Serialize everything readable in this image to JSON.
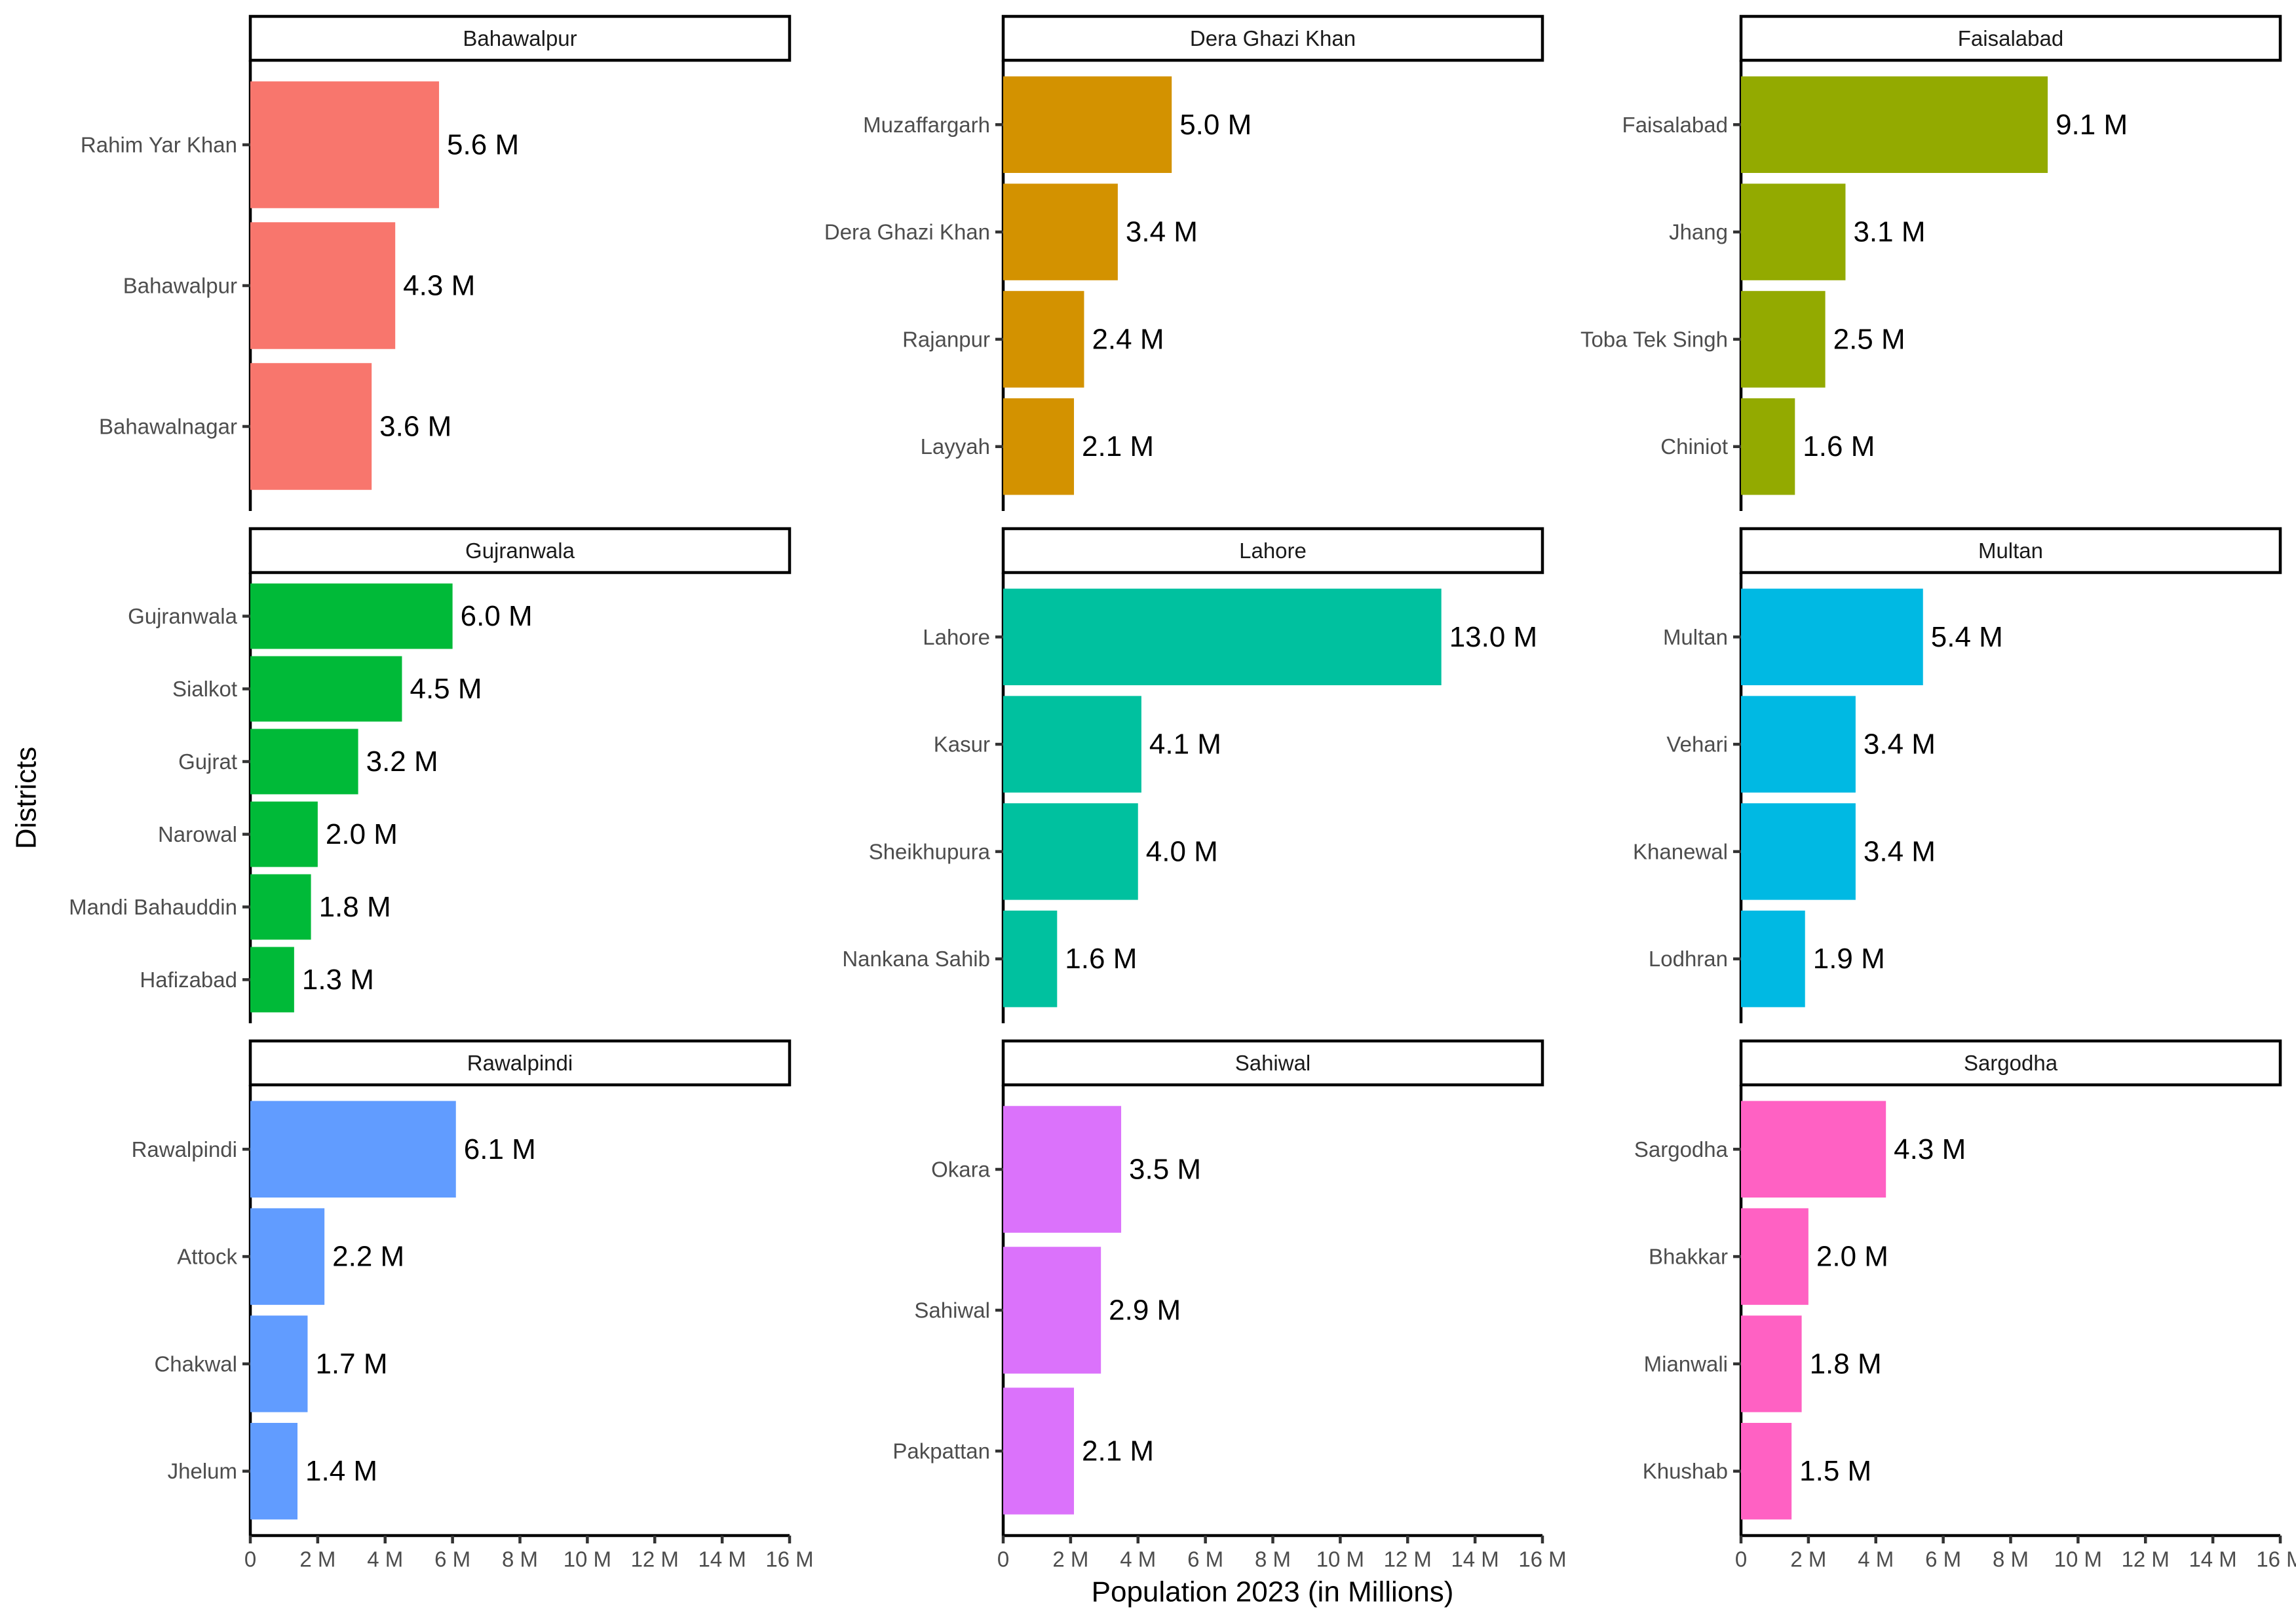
{
  "chart_data": {
    "type": "bar",
    "orientation": "horizontal",
    "layout": "facet-grid 3x3",
    "xlabel": "Population 2023 (in Millions)",
    "ylabel": "Districts",
    "xlim": [
      0,
      16
    ],
    "x_ticks": [
      0,
      2,
      4,
      6,
      8,
      10,
      12,
      14,
      16
    ],
    "x_tick_labels": [
      "0",
      "2 M",
      "4 M",
      "6 M",
      "8 M",
      "10 M",
      "12 M",
      "14 M",
      "16 M"
    ],
    "grid": false,
    "legend": "none",
    "panels": [
      {
        "division": "Bahawalpur",
        "color": "#F8766D",
        "categories": [
          "Rahim Yar Khan",
          "Bahawalpur",
          "Bahawalnagar"
        ],
        "values": [
          5.6,
          4.3,
          3.6
        ],
        "labels": [
          "5.6 M",
          "4.3 M",
          "3.6 M"
        ]
      },
      {
        "division": "Dera Ghazi Khan",
        "color": "#D39200",
        "categories": [
          "Muzaffargarh",
          "Dera Ghazi Khan",
          "Rajanpur",
          "Layyah"
        ],
        "values": [
          5.0,
          3.4,
          2.4,
          2.1
        ],
        "labels": [
          "5.0 M",
          "3.4 M",
          "2.4 M",
          "2.1 M"
        ]
      },
      {
        "division": "Faisalabad",
        "color": "#93AA00",
        "categories": [
          "Faisalabad",
          "Jhang",
          "Toba Tek Singh",
          "Chiniot"
        ],
        "values": [
          9.1,
          3.1,
          2.5,
          1.6
        ],
        "labels": [
          "9.1 M",
          "3.1 M",
          "2.5 M",
          "1.6 M"
        ]
      },
      {
        "division": "Gujranwala",
        "color": "#00BA38",
        "categories": [
          "Gujranwala",
          "Sialkot",
          "Gujrat",
          "Narowal",
          "Mandi Bahauddin",
          "Hafizabad"
        ],
        "values": [
          6.0,
          4.5,
          3.2,
          2.0,
          1.8,
          1.3
        ],
        "labels": [
          "6.0 M",
          "4.5 M",
          "3.2 M",
          "2.0 M",
          "1.8 M",
          "1.3 M"
        ]
      },
      {
        "division": "Lahore",
        "color": "#00C19F",
        "categories": [
          "Lahore",
          "Kasur",
          "Sheikhupura",
          "Nankana Sahib"
        ],
        "values": [
          13.0,
          4.1,
          4.0,
          1.6
        ],
        "labels": [
          "13.0 M",
          "4.1 M",
          "4.0 M",
          "1.6 M"
        ]
      },
      {
        "division": "Multan",
        "color": "#00B9E3",
        "categories": [
          "Multan",
          "Vehari",
          "Khanewal",
          "Lodhran"
        ],
        "values": [
          5.4,
          3.4,
          3.4,
          1.9
        ],
        "labels": [
          "5.4 M",
          "3.4 M",
          "3.4 M",
          "1.9 M"
        ]
      },
      {
        "division": "Rawalpindi",
        "color": "#619CFF",
        "categories": [
          "Rawalpindi",
          "Attock",
          "Chakwal",
          "Jhelum"
        ],
        "values": [
          6.1,
          2.2,
          1.7,
          1.4
        ],
        "labels": [
          "6.1 M",
          "2.2 M",
          "1.7 M",
          "1.4 M"
        ]
      },
      {
        "division": "Sahiwal",
        "color": "#DB72FB",
        "categories": [
          "Okara",
          "Sahiwal",
          "Pakpattan"
        ],
        "values": [
          3.5,
          2.9,
          2.1
        ],
        "labels": [
          "3.5 M",
          "2.9 M",
          "2.1 M"
        ]
      },
      {
        "division": "Sargodha",
        "color": "#FF61C3",
        "categories": [
          "Sargodha",
          "Bhakkar",
          "Mianwali",
          "Khushab"
        ],
        "values": [
          4.3,
          2.0,
          1.8,
          1.5
        ],
        "labels": [
          "4.3 M",
          "2.0 M",
          "1.8 M",
          "1.5 M"
        ]
      }
    ]
  }
}
